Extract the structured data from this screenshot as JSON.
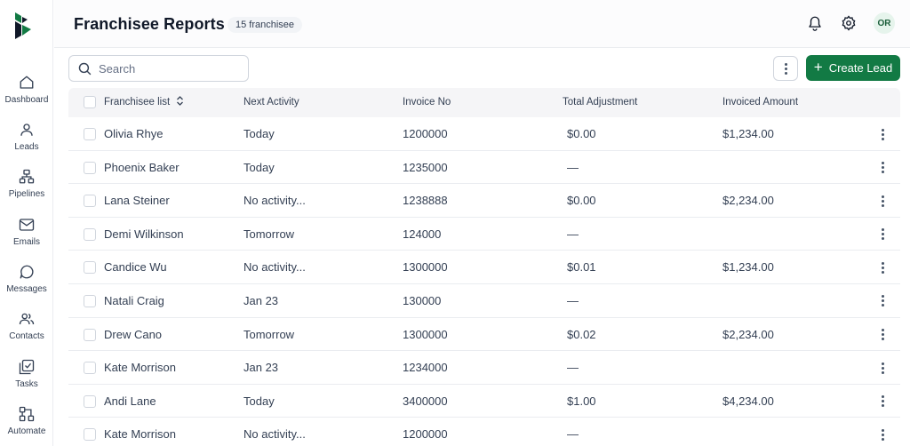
{
  "sidebar": {
    "items": [
      {
        "label": "Dashboard",
        "icon": "home-icon"
      },
      {
        "label": "Leads",
        "icon": "user-icon"
      },
      {
        "label": "Pipelines",
        "icon": "pipeline-icon"
      },
      {
        "label": "Emails",
        "icon": "mail-icon"
      },
      {
        "label": "Messages",
        "icon": "message-icon"
      },
      {
        "label": "Contacts",
        "icon": "users-icon"
      },
      {
        "label": "Tasks",
        "icon": "tasks-icon"
      },
      {
        "label": "Automate",
        "icon": "automate-icon"
      }
    ]
  },
  "header": {
    "title": "Franchisee Reports",
    "badge": "15 franchisee",
    "avatar_initials": "OR"
  },
  "toolbar": {
    "search_placeholder": "Search",
    "create_label": "Create Lead",
    "accent_color": "#127a44"
  },
  "table": {
    "columns": [
      "Franchisee list",
      "Next Activity",
      "Invoice No",
      "Total Adjustment",
      "Invoiced Amount"
    ],
    "rows": [
      {
        "name": "Olivia Rhye",
        "activity": "Today",
        "invoice": "1200000",
        "adjustment": "$0.00",
        "amount": "$1,234.00"
      },
      {
        "name": "Phoenix Baker",
        "activity": "Today",
        "invoice": "1235000",
        "adjustment": "—",
        "amount": ""
      },
      {
        "name": "Lana Steiner",
        "activity": "No activity...",
        "invoice": "1238888",
        "adjustment": "$0.00",
        "amount": "$2,234.00"
      },
      {
        "name": "Demi Wilkinson",
        "activity": "Tomorrow",
        "invoice": "124000",
        "adjustment": "—",
        "amount": ""
      },
      {
        "name": "Candice Wu",
        "activity": "No activity...",
        "invoice": "1300000",
        "adjustment": "$0.01",
        "amount": "$1,234.00"
      },
      {
        "name": "Natali Craig",
        "activity": "Jan 23",
        "invoice": "130000",
        "adjustment": "—",
        "amount": ""
      },
      {
        "name": "Drew Cano",
        "activity": "Tomorrow",
        "invoice": "1300000",
        "adjustment": "$0.02",
        "amount": "$2,234.00"
      },
      {
        "name": "Kate Morrison",
        "activity": "Jan 23",
        "invoice": "1234000",
        "adjustment": "—",
        "amount": ""
      },
      {
        "name": "Andi Lane",
        "activity": "Today",
        "invoice": "3400000",
        "adjustment": "$1.00",
        "amount": "$4,234.00"
      },
      {
        "name": "Kate Morrison",
        "activity": "No activity...",
        "invoice": "1200000",
        "adjustment": "—",
        "amount": ""
      }
    ]
  }
}
